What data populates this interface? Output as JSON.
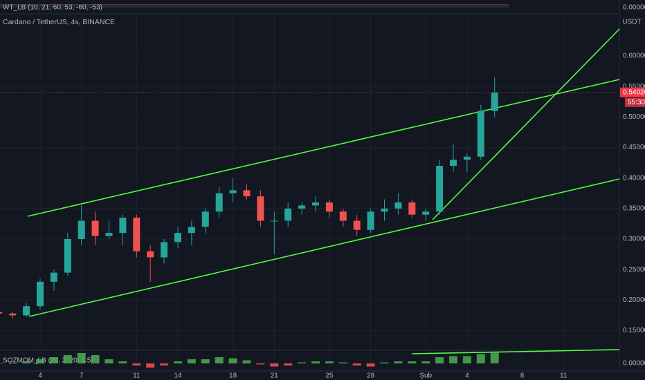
{
  "chart_data": {
    "type": "candlestick",
    "title": "Cardano / TetherUS, 4s, BINANCE",
    "unit": "USDT",
    "top_indicator": "WT_LB (10, 21, 60, 53, -60, -53)",
    "top_ticks": [
      {
        "value": 0,
        "label": "0.00000"
      }
    ],
    "bottom_indicator": "SQZMOM_LB (20, 2, 20, 1.5)",
    "categories": [
      null,
      null,
      null,
      "4",
      null,
      null,
      "7",
      null,
      null,
      null,
      "11",
      null,
      null,
      "14",
      null,
      null,
      null,
      "18",
      null,
      null,
      "21",
      null,
      null,
      null,
      "25",
      null,
      null,
      "28",
      null,
      null,
      null,
      "Şub",
      null,
      null,
      "4",
      null,
      null,
      null,
      "8",
      null,
      null,
      "11"
    ],
    "open": [
      0.18,
      0.178,
      0.175,
      0.19,
      0.23,
      0.245,
      0.3,
      0.33,
      0.305,
      0.31,
      0.335,
      0.28,
      0.27,
      0.295,
      0.31,
      0.32,
      0.345,
      0.375,
      0.38,
      0.37,
      0.33,
      0.33,
      0.35,
      0.355,
      0.36,
      0.345,
      0.33,
      0.315,
      0.345,
      0.35,
      0.36,
      0.34,
      0.345,
      0.42,
      0.43,
      0.435,
      0.51,
      null,
      null,
      null,
      null,
      null
    ],
    "high": [
      0.185,
      0.18,
      0.195,
      0.235,
      0.25,
      0.31,
      0.355,
      0.345,
      0.33,
      0.34,
      0.34,
      0.29,
      0.3,
      0.32,
      0.33,
      0.35,
      0.385,
      0.4,
      0.39,
      0.38,
      0.345,
      0.36,
      0.36,
      0.37,
      0.365,
      0.35,
      0.34,
      0.35,
      0.365,
      0.375,
      0.365,
      0.35,
      0.43,
      0.455,
      0.44,
      0.52,
      0.565,
      null,
      null,
      null,
      null,
      null
    ],
    "low": [
      0.175,
      0.17,
      0.172,
      0.185,
      0.215,
      0.24,
      0.29,
      0.29,
      0.3,
      0.29,
      0.27,
      0.23,
      0.26,
      0.285,
      0.29,
      0.31,
      0.335,
      0.36,
      0.365,
      0.32,
      0.275,
      0.32,
      0.34,
      0.345,
      0.335,
      0.32,
      0.305,
      0.31,
      0.33,
      0.34,
      0.335,
      0.33,
      0.34,
      0.41,
      0.41,
      0.43,
      0.5,
      null,
      null,
      null,
      null,
      null
    ],
    "close": [
      0.178,
      0.175,
      0.19,
      0.23,
      0.245,
      0.3,
      0.33,
      0.305,
      0.31,
      0.335,
      0.28,
      0.27,
      0.295,
      0.31,
      0.32,
      0.345,
      0.375,
      0.38,
      0.37,
      0.33,
      0.33,
      0.35,
      0.355,
      0.36,
      0.345,
      0.33,
      0.315,
      0.345,
      0.35,
      0.36,
      0.34,
      0.345,
      0.42,
      0.43,
      0.435,
      0.51,
      0.54,
      null,
      null,
      null,
      null,
      null
    ],
    "up_color": "#26a69a",
    "down_color": "#ef5350",
    "ylim": [
      0.12,
      0.66
    ],
    "yticks": [
      {
        "value": 0.15,
        "label": "0.15000"
      },
      {
        "value": 0.2,
        "label": "0.20000"
      },
      {
        "value": 0.25,
        "label": "0.25000"
      },
      {
        "value": 0.3,
        "label": "0.30000"
      },
      {
        "value": 0.35,
        "label": "0.35000"
      },
      {
        "value": 0.4,
        "label": "0.40000"
      },
      {
        "value": 0.45,
        "label": "0.45000"
      },
      {
        "value": 0.5,
        "label": "0.50000"
      },
      {
        "value": 0.55,
        "label": "0.55000"
      },
      {
        "value": 0.6,
        "label": "0.60000"
      }
    ],
    "grid": true,
    "last_price": {
      "value": 0.54026,
      "label": "0.54026"
    },
    "countdown": "55:30",
    "momentum": [
      0,
      0,
      0.01,
      0.02,
      0.03,
      0.04,
      0.05,
      0.04,
      0.02,
      0.01,
      -0.01,
      -0.02,
      -0.01,
      0.01,
      0.02,
      0.02,
      0.03,
      0.025,
      0.015,
      -0.005,
      -0.015,
      -0.01,
      0.005,
      0.01,
      0.01,
      0.005,
      -0.01,
      -0.015,
      0.005,
      0.01,
      0.01,
      0.01,
      0.03,
      0.035,
      0.035,
      0.045,
      0.055,
      null,
      null,
      null,
      null,
      null
    ],
    "momentum_lim": [
      -0.02,
      0.06
    ],
    "momentum_ticks": [
      {
        "value": 0,
        "label": "0.00000"
      }
    ]
  }
}
